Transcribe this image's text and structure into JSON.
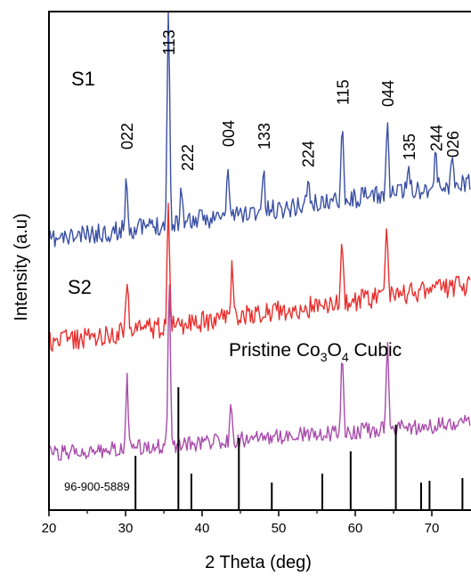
{
  "chart_data": {
    "type": "line",
    "xlabel": "2 Theta (deg)",
    "ylabel": "Intensity (a.u)",
    "xlim": [
      20,
      74
    ],
    "x_ticks": [
      20,
      30,
      40,
      50,
      60,
      70
    ],
    "x_tick_labels": [
      "20",
      "30",
      "40",
      "50",
      "60",
      "70"
    ],
    "grid": false,
    "series": [
      {
        "name": "S1",
        "color": "#3a4fa3",
        "peaks": [
          {
            "x": 30.1,
            "h": 62
          },
          {
            "x": 35.6,
            "h": 255
          },
          {
            "x": 37.3,
            "h": 40
          },
          {
            "x": 43.4,
            "h": 55
          },
          {
            "x": 48.0,
            "h": 45
          },
          {
            "x": 53.8,
            "h": 30
          },
          {
            "x": 58.3,
            "h": 95
          },
          {
            "x": 64.2,
            "h": 80
          },
          {
            "x": 67.0,
            "h": 30
          },
          {
            "x": 70.5,
            "h": 40
          },
          {
            "x": 72.7,
            "h": 30
          }
        ]
      },
      {
        "name": "S2",
        "color": "#e8302f",
        "peaks": [
          {
            "x": 30.2,
            "h": 65
          },
          {
            "x": 35.6,
            "h": 140
          },
          {
            "x": 43.9,
            "h": 55
          },
          {
            "x": 58.3,
            "h": 65
          },
          {
            "x": 64.1,
            "h": 80
          }
        ]
      },
      {
        "name": "Pristine Co3O4 Cubic",
        "color": "#a84cab",
        "peaks": [
          {
            "x": 30.2,
            "h": 80
          },
          {
            "x": 35.7,
            "h": 185
          },
          {
            "x": 43.8,
            "h": 40
          },
          {
            "x": 58.3,
            "h": 85
          },
          {
            "x": 64.2,
            "h": 100
          }
        ]
      }
    ],
    "reference_pattern": {
      "name": "96-900-5889",
      "lines": [
        {
          "x": 31.3,
          "h": 60
        },
        {
          "x": 36.9,
          "h": 137
        },
        {
          "x": 38.6,
          "h": 40
        },
        {
          "x": 44.8,
          "h": 80
        },
        {
          "x": 49.1,
          "h": 30
        },
        {
          "x": 55.7,
          "h": 40
        },
        {
          "x": 59.4,
          "h": 65
        },
        {
          "x": 65.3,
          "h": 95
        },
        {
          "x": 68.6,
          "h": 30
        },
        {
          "x": 69.7,
          "h": 32
        },
        {
          "x": 74.0,
          "h": 35
        }
      ]
    },
    "peak_labels": [
      {
        "x": 30.1,
        "text": "022"
      },
      {
        "x": 35.6,
        "text": "113"
      },
      {
        "x": 38.0,
        "text": "222"
      },
      {
        "x": 43.4,
        "text": "004"
      },
      {
        "x": 48.0,
        "text": "133"
      },
      {
        "x": 53.8,
        "text": "224"
      },
      {
        "x": 58.3,
        "text": "115"
      },
      {
        "x": 64.2,
        "text": "044"
      },
      {
        "x": 67.0,
        "text": "135"
      },
      {
        "x": 70.5,
        "text": "244"
      },
      {
        "x": 72.7,
        "text": "026"
      }
    ],
    "annotations": {
      "s1": "S1",
      "s2": "S2",
      "pristine_prefix": "Pristine Co",
      "pristine_sub1": "3",
      "pristine_mid": "O",
      "pristine_sub2": "4",
      "pristine_suffix": " Cubic",
      "reference": "96-900-5889"
    }
  }
}
